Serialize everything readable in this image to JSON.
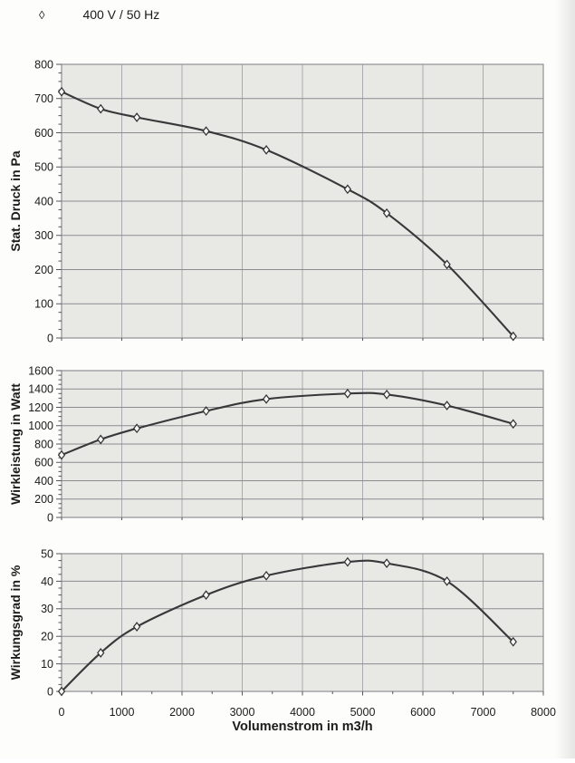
{
  "legend": {
    "marker_symbol": "◊",
    "label": "400 V / 50 Hz"
  },
  "colors": {
    "page_background": "#fdfdfb",
    "plot_background": "#e8e8e5",
    "grid_horizontal": "#8a8c90",
    "grid_vertical": "#aaabae",
    "plot_border": "#8f9094",
    "curve": "#38383a",
    "marker_fill": "#f6f6f4",
    "marker_stroke": "#2f2f31",
    "text": "#1b1b1b"
  },
  "chart_data": [
    {
      "type": "line",
      "title": "",
      "xlabel": "",
      "ylabel": "Stat. Druck in Pa",
      "x": [
        0,
        650,
        1250,
        2400,
        3400,
        4750,
        5400,
        6400,
        7500
      ],
      "series": [
        {
          "name": "400 V / 50 Hz",
          "values": [
            720,
            670,
            645,
            605,
            550,
            435,
            365,
            215,
            5
          ]
        }
      ],
      "xlim": [
        0,
        8000
      ],
      "ylim": [
        0,
        800
      ],
      "xtick_step": 1000,
      "ytick_step": 100,
      "x_tick_labels_visible": false,
      "grid": true,
      "marker": "diamond",
      "legend_position": "page-top-left"
    },
    {
      "type": "line",
      "title": "",
      "xlabel": "",
      "ylabel": "Wirkleistung in Watt",
      "x": [
        0,
        650,
        1250,
        2400,
        3400,
        4750,
        5400,
        6400,
        7500
      ],
      "series": [
        {
          "name": "400 V / 50 Hz",
          "values": [
            680,
            850,
            970,
            1160,
            1290,
            1350,
            1340,
            1220,
            1020
          ]
        }
      ],
      "xlim": [
        0,
        8000
      ],
      "ylim": [
        0,
        1600
      ],
      "xtick_step": 1000,
      "ytick_step": 200,
      "x_tick_labels_visible": false,
      "grid": true,
      "marker": "diamond",
      "legend_position": "page-top-left"
    },
    {
      "type": "line",
      "title": "",
      "xlabel": "Volumenstrom in m3/h",
      "ylabel": "Wirkungsgrad in %",
      "x": [
        0,
        650,
        1250,
        2400,
        3400,
        4750,
        5400,
        6400,
        7500
      ],
      "series": [
        {
          "name": "400 V / 50 Hz",
          "values": [
            0,
            14,
            23.5,
            35,
            42,
            47,
            46.5,
            40,
            18
          ]
        }
      ],
      "xlim": [
        0,
        8000
      ],
      "ylim": [
        0,
        50
      ],
      "xtick_step": 1000,
      "ytick_step": 10,
      "x_tick_labels_visible": true,
      "grid": true,
      "marker": "diamond",
      "legend_position": "page-top-left"
    }
  ]
}
